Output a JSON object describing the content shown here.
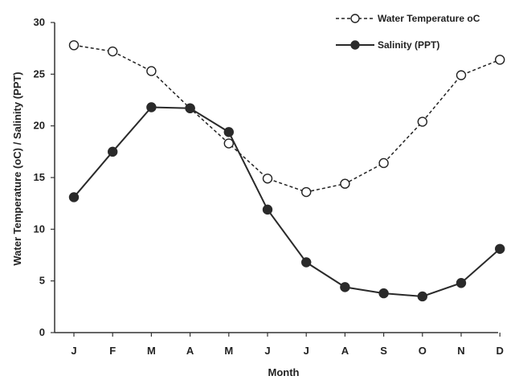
{
  "chart_data": {
    "type": "line",
    "title": "",
    "xlabel": "Month",
    "ylabel": "Water Temperature (oC)  / Salinity (PPT)",
    "categories": [
      "J",
      "F",
      "M",
      "A",
      "M",
      "J",
      "J",
      "A",
      "S",
      "O",
      "N",
      "D"
    ],
    "ylim": [
      0,
      30
    ],
    "yticks": [
      0,
      5,
      10,
      15,
      20,
      25,
      30
    ],
    "grid": false,
    "legend_position": "top-right",
    "series": [
      {
        "name": "Water Temperature oC",
        "values": [
          27.8,
          27.2,
          25.3,
          21.7,
          18.3,
          14.9,
          13.6,
          14.4,
          16.4,
          20.4,
          24.9,
          26.4
        ],
        "style": "dashed",
        "marker": "open-circle",
        "color": "#222222"
      },
      {
        "name": "Salinity (PPT)",
        "values": [
          13.1,
          17.5,
          21.8,
          21.7,
          19.4,
          11.9,
          6.8,
          4.4,
          3.8,
          3.5,
          4.8,
          8.1
        ],
        "style": "solid",
        "marker": "filled-circle",
        "color": "#2a2a2a"
      }
    ]
  }
}
